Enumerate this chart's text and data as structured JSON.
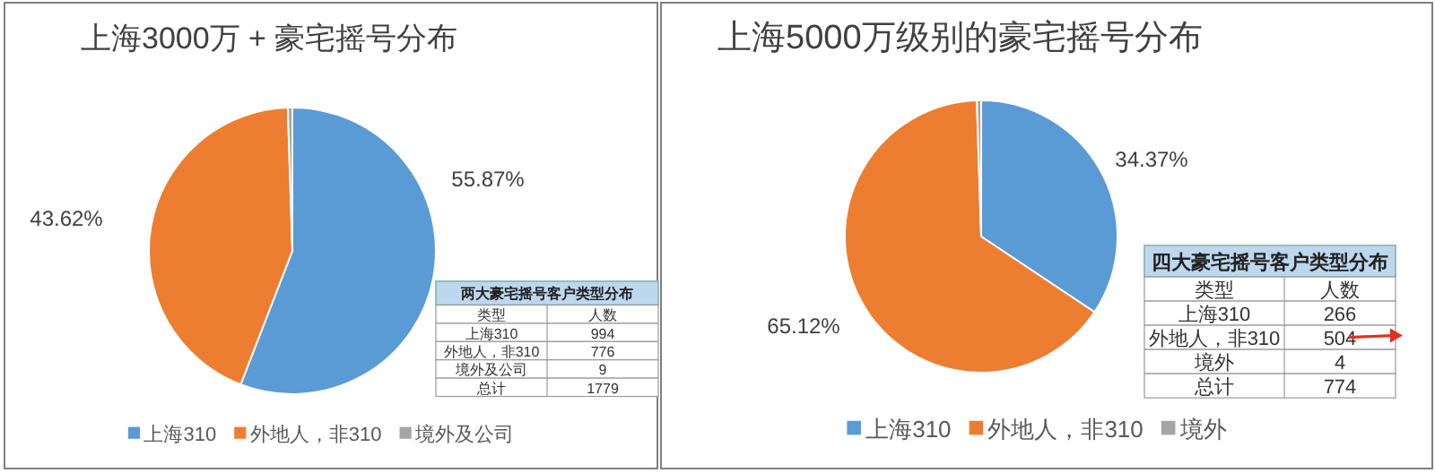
{
  "chart_data": [
    {
      "type": "pie",
      "title": "上海3000万 + 豪宅摇号分布",
      "categories": [
        "上海310",
        "外地人，非310",
        "境外及公司"
      ],
      "values": [
        55.87,
        43.62,
        0.51
      ],
      "colors": [
        "#5b9bd5",
        "#ed7d31",
        "#a5a5a5"
      ],
      "value_labels": [
        "55.87%",
        "43.62%",
        null
      ],
      "legend": "bottom",
      "annotations": [
        "两大豪宅摇号客户类型分布",
        "类型",
        "人数",
        "上海310",
        "994",
        "外地人，非310",
        "776",
        "境外及公司",
        "9",
        "总计",
        "1779"
      ]
    },
    {
      "type": "pie",
      "title": "上海5000万级别的豪宅摇号分布",
      "categories": [
        "上海310",
        "外地人，非310",
        "境外"
      ],
      "values": [
        34.37,
        65.12,
        0.51
      ],
      "colors": [
        "#5b9bd5",
        "#ed7d31",
        "#a5a5a5"
      ],
      "value_labels": [
        "34.37%",
        "65.12%",
        null
      ],
      "legend": "bottom",
      "annotations": [
        "四大豪宅摇号客户类型分布",
        "类型",
        "人数",
        "上海310",
        "266",
        "外地人，非310",
        "504",
        "境外",
        "4",
        "总计",
        "774"
      ]
    }
  ]
}
